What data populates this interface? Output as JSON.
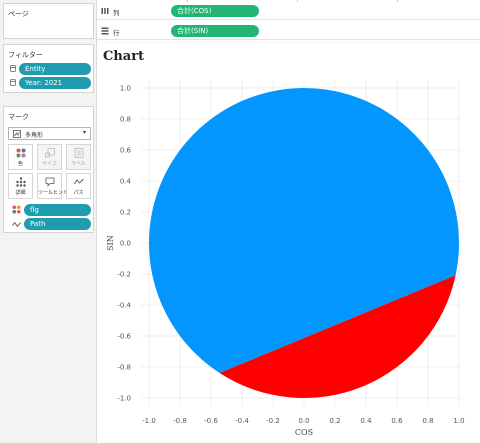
{
  "sidebar": {
    "pages_title": "ページ",
    "filters_title": "フィルター",
    "filters": [
      "Entity",
      "Year: 2021"
    ],
    "marks_title": "マーク",
    "mark_type": "多角形",
    "mark_buttons": [
      {
        "label": "色",
        "icon": "color-icon"
      },
      {
        "label": "サイズ",
        "icon": "size-icon"
      },
      {
        "label": "ラベル",
        "icon": "label-icon"
      },
      {
        "label": "詳細",
        "icon": "detail-icon"
      },
      {
        "label": "ツールヒント",
        "icon": "tooltip-icon"
      },
      {
        "label": "パス",
        "icon": "path-icon"
      }
    ],
    "mark_fields": [
      "flg",
      "Path"
    ]
  },
  "shelves": {
    "columns_label": "列",
    "columns_pill": "合計(COS)",
    "rows_label": "行",
    "rows_pill": "合計(SIN)"
  },
  "colors": {
    "pill_green": "#22b573",
    "pill_teal": "#1f9cb0",
    "series_blue": "#0396ff",
    "series_red": "#ff0000"
  },
  "chart_data": {
    "type": "area",
    "title": "Chart",
    "xlabel": "COS",
    "ylabel": "SIN",
    "xlim": [
      -1.0,
      1.0
    ],
    "ylim": [
      -1.0,
      1.0
    ],
    "xticks": [
      "-1.0",
      "-0.8",
      "-0.6",
      "-0.4",
      "-0.2",
      "0.0",
      "0.2",
      "0.4",
      "0.6",
      "0.8",
      "1.0"
    ],
    "yticks": [
      "1.0",
      "0.8",
      "0.6",
      "0.4",
      "0.2",
      "0.0",
      "-0.2",
      "-0.4",
      "-0.6",
      "-0.8",
      "-1.0"
    ],
    "grid": true,
    "series": [
      {
        "color": "#0396ff",
        "start_angle_deg": -12,
        "end_angle_deg": 237,
        "share": 0.69
      },
      {
        "color": "#ff0000",
        "start_angle_deg": 237,
        "end_angle_deg": 348,
        "share": 0.31
      }
    ]
  }
}
